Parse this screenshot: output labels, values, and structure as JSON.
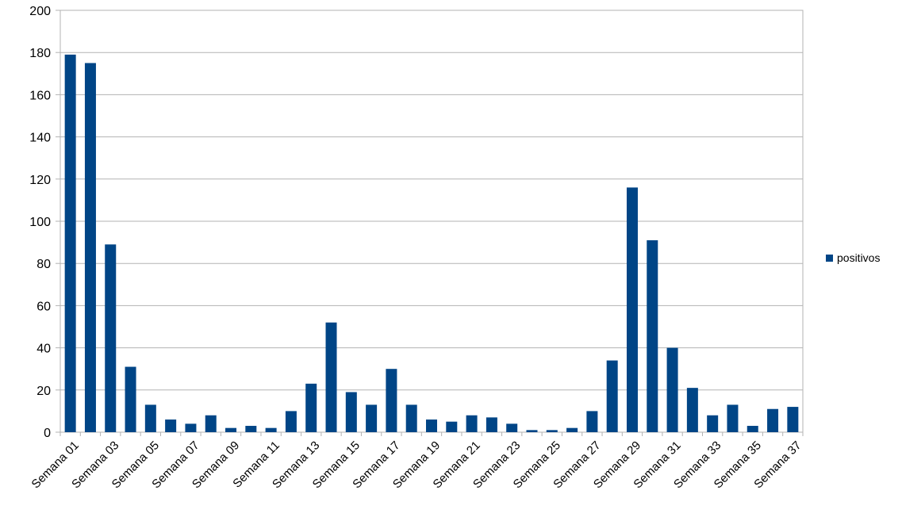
{
  "chart_data": {
    "type": "bar",
    "title": "",
    "xlabel": "",
    "ylabel": "",
    "ylim": [
      0,
      200
    ],
    "yticks": [
      0,
      20,
      40,
      60,
      80,
      100,
      120,
      140,
      160,
      180,
      200
    ],
    "grid": true,
    "legend_position": "right",
    "bar_color": "#004586",
    "categories": [
      "Semana 01",
      "Semana 02",
      "Semana 03",
      "Semana 04",
      "Semana 05",
      "Semana 06",
      "Semana 07",
      "Semana 08",
      "Semana 09",
      "Semana 10",
      "Semana 11",
      "Semana 12",
      "Semana 13",
      "Semana 14",
      "Semana 15",
      "Semana 16",
      "Semana 17",
      "Semana 18",
      "Semana 19",
      "Semana 20",
      "Semana 21",
      "Semana 22",
      "Semana 23",
      "Semana 24",
      "Semana 25",
      "Semana 26",
      "Semana 27",
      "Semana 28",
      "Semana 29",
      "Semana 30",
      "Semana 31",
      "Semana 32",
      "Semana 33",
      "Semana 34",
      "Semana 35",
      "Semana 36",
      "Semana 37"
    ],
    "visible_x_labels": [
      "Semana 01",
      "Semana 03",
      "Semana 05",
      "Semana 07",
      "Semana 09",
      "Semana 11",
      "Semana 13",
      "Semana 15",
      "Semana 17",
      "Semana 19",
      "Semana 21",
      "Semana 23",
      "Semana 25",
      "Semana 27",
      "Semana 29",
      "Semana 31",
      "Semana 33",
      "Semana 35",
      "Semana 37"
    ],
    "series": [
      {
        "name": "positivos",
        "color": "#004586",
        "values": [
          179,
          175,
          89,
          31,
          13,
          6,
          4,
          8,
          2,
          3,
          2,
          10,
          23,
          52,
          19,
          13,
          30,
          13,
          6,
          5,
          8,
          7,
          4,
          1,
          1,
          2,
          10,
          34,
          116,
          91,
          40,
          21,
          8,
          13,
          3,
          11,
          12
        ]
      }
    ]
  }
}
